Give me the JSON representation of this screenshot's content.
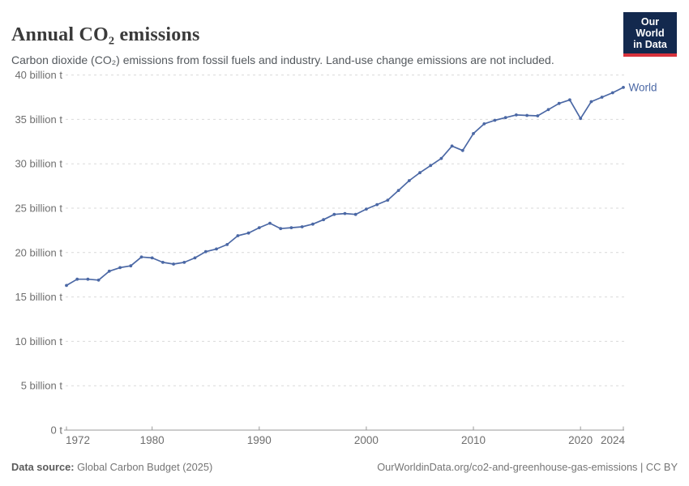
{
  "header": {
    "title": "Annual CO₂ emissions",
    "subtitle": "Carbon dioxide (CO₂) emissions from fossil fuels and industry. Land-use change emissions are not included.",
    "logo": {
      "line1": "Our World",
      "line2": "in Data"
    }
  },
  "footer": {
    "source_label": "Data source:",
    "source_text": " Global Carbon Budget (2025)",
    "right_text": "OurWorldinData.org/co2-and-greenhouse-gas-emissions | CC BY"
  },
  "colors": {
    "line": "#4b68a5",
    "end_label": "#4b68a5",
    "gridline": "#d9d9d9",
    "axis": "#999999",
    "tick_text": "#6e6e6e",
    "logo_bg": "#13294e",
    "logo_bar": "#d8323c"
  },
  "chart_data": {
    "type": "line",
    "title": "Annual CO₂ emissions",
    "xlabel": "",
    "ylabel": "",
    "unit": "billion t",
    "grid": "horizontal-dashed",
    "legend_position": "end-of-line-label",
    "xlim": [
      1972,
      2024
    ],
    "ylim": [
      0,
      40
    ],
    "x_ticks": [
      1972,
      1980,
      1990,
      2000,
      2010,
      2020,
      2024
    ],
    "y_ticks": [
      {
        "value": 0,
        "label": "0 t"
      },
      {
        "value": 5,
        "label": "5 billion t"
      },
      {
        "value": 10,
        "label": "10 billion t"
      },
      {
        "value": 15,
        "label": "15 billion t"
      },
      {
        "value": 20,
        "label": "20 billion t"
      },
      {
        "value": 25,
        "label": "25 billion t"
      },
      {
        "value": 30,
        "label": "30 billion t"
      },
      {
        "value": 35,
        "label": "35 billion t"
      },
      {
        "value": 40,
        "label": "40 billion t"
      }
    ],
    "series": [
      {
        "name": "World",
        "x": [
          1972,
          1973,
          1974,
          1975,
          1976,
          1977,
          1978,
          1979,
          1980,
          1981,
          1982,
          1983,
          1984,
          1985,
          1986,
          1987,
          1988,
          1989,
          1990,
          1991,
          1992,
          1993,
          1994,
          1995,
          1996,
          1997,
          1998,
          1999,
          2000,
          2001,
          2002,
          2003,
          2004,
          2005,
          2006,
          2007,
          2008,
          2009,
          2010,
          2011,
          2012,
          2013,
          2014,
          2015,
          2016,
          2017,
          2018,
          2019,
          2020,
          2021,
          2022,
          2023,
          2024
        ],
        "values": [
          16.3,
          17.0,
          17.0,
          16.9,
          17.9,
          18.3,
          18.5,
          19.5,
          19.4,
          18.9,
          18.7,
          18.9,
          19.4,
          20.1,
          20.4,
          20.9,
          21.9,
          22.2,
          22.8,
          23.3,
          22.7,
          22.8,
          22.9,
          23.2,
          23.7,
          24.3,
          24.4,
          24.3,
          24.9,
          25.4,
          25.9,
          27.0,
          28.1,
          29.0,
          29.8,
          30.6,
          32.0,
          31.5,
          33.4,
          34.5,
          34.9,
          35.2,
          35.5,
          35.45,
          35.4,
          36.1,
          36.8,
          37.2,
          35.1,
          37.0,
          37.5,
          38.0,
          38.6
        ]
      }
    ]
  }
}
